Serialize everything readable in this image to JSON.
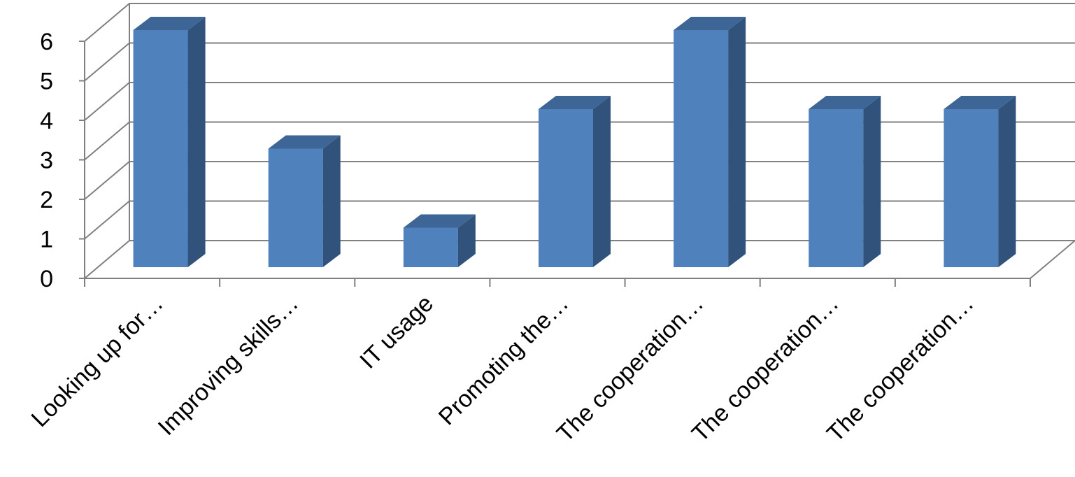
{
  "chart_data": {
    "type": "bar",
    "style": "3d-column",
    "title": "",
    "xlabel": "",
    "ylabel": "",
    "ylim": [
      0,
      6
    ],
    "yticks": [
      0,
      1,
      2,
      3,
      4,
      5,
      6
    ],
    "grid": true,
    "legend": "none",
    "categories": [
      "Looking up for…",
      "Improving skills…",
      "IT usage",
      "Promoting the…",
      "The cooperation…",
      "The cooperation…",
      "The cooperation…"
    ],
    "values": [
      6,
      3,
      1,
      4,
      6,
      4,
      4
    ],
    "colors": {
      "front": "#4f81bd",
      "side": "#31537b",
      "top": "#3d6696",
      "grid": "#808080"
    }
  }
}
